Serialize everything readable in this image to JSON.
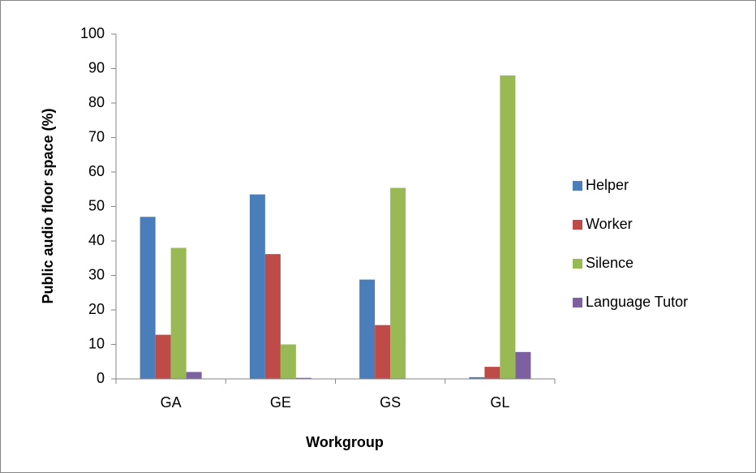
{
  "chart_data": {
    "type": "bar",
    "x_label": "Workgroup",
    "y_label": "Public audio floor  space (%)",
    "categories": [
      "GA",
      "GE",
      "GS",
      "GL"
    ],
    "series": [
      {
        "name": "Helper",
        "color": "#4a7ebb",
        "values": [
          47,
          53.5,
          28.8,
          0.5
        ]
      },
      {
        "name": "Worker",
        "color": "#be4b48",
        "values": [
          12.8,
          36.2,
          15.6,
          3.5
        ]
      },
      {
        "name": "Silence",
        "color": "#98b954",
        "values": [
          38,
          10,
          55.4,
          88
        ]
      },
      {
        "name": "Language Tutor",
        "color": "#7d60a0",
        "values": [
          2,
          0.3,
          0,
          7.8
        ]
      }
    ],
    "ylim": [
      0,
      100
    ],
    "yticks": [
      0,
      10,
      20,
      30,
      40,
      50,
      60,
      70,
      80,
      90,
      100
    ],
    "grid": false,
    "legend": "right"
  }
}
